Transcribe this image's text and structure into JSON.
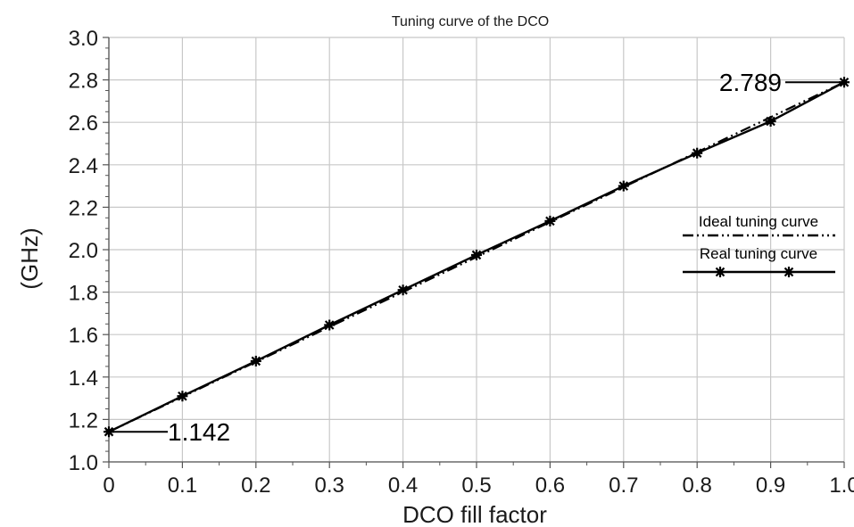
{
  "chart_data": {
    "type": "line",
    "title": "Tuning curve of the DCO",
    "xlabel": "DCO fill factor",
    "ylabel": "(GHz)",
    "xlim": [
      0,
      1.0
    ],
    "ylim": [
      1.0,
      3.0
    ],
    "x_ticks": [
      "0",
      "0.1",
      "0.2",
      "0.3",
      "0.4",
      "0.5",
      "0.6",
      "0.7",
      "0.8",
      "0.9",
      "1.0"
    ],
    "y_ticks": [
      "1.0",
      "1.2",
      "1.4",
      "1.6",
      "1.8",
      "2.0",
      "2.2",
      "2.4",
      "2.6",
      "2.8",
      "3.0"
    ],
    "grid": true,
    "legend_position": "right",
    "series": [
      {
        "name": "Ideal tuning curve",
        "style": "dash-dot-dot",
        "x": [
          0,
          1.0
        ],
        "y": [
          1.142,
          2.789
        ]
      },
      {
        "name": "Real tuning curve",
        "style": "solid-with-star-markers",
        "x": [
          0,
          0.1,
          0.2,
          0.3,
          0.4,
          0.5,
          0.6,
          0.7,
          0.8,
          0.9,
          1.0
        ],
        "y": [
          1.142,
          1.31,
          1.475,
          1.645,
          1.81,
          1.975,
          2.135,
          2.3,
          2.455,
          2.605,
          2.789
        ]
      }
    ],
    "annotations": [
      {
        "text": "1.142",
        "x": 0,
        "y": 1.142
      },
      {
        "text": "2.789",
        "x": 1.0,
        "y": 2.789
      }
    ],
    "colors": {
      "line": "#000000",
      "grid": "#c8c8c8",
      "axis": "#555555"
    }
  }
}
